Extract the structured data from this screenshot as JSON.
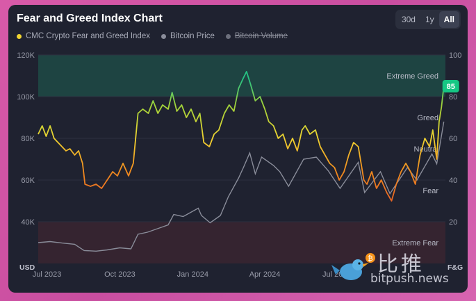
{
  "title": "Fear and Greed Index Chart",
  "ranges": [
    "30d",
    "1y",
    "All"
  ],
  "active_range": "All",
  "legend": [
    {
      "label": "CMC Crypto Fear and Greed Index",
      "color": "#f0d431",
      "enabled": true
    },
    {
      "label": "Bitcoin Price",
      "color": "#8a8d9a",
      "enabled": true
    },
    {
      "label": "Bitcoin Volume",
      "color": "#6c6f7c",
      "enabled": false
    }
  ],
  "watermark": {
    "cn": "比推",
    "en": "bitpush.news"
  },
  "colors": {
    "extreme_greed_band": "#1f4a45",
    "extreme_fear_band": "#3e2530",
    "btc_line": "#8a8d9a",
    "current_badge": "#16c784"
  },
  "chart_data": {
    "type": "line",
    "x_ticks": [
      "Jul 2023",
      "Oct 2023",
      "Jan 2024",
      "Apr 2024",
      "Jul 2024"
    ],
    "x_range": [
      "2023-06-20",
      "2024-11-15"
    ],
    "y_left": {
      "label": "USD",
      "ticks": [
        "40K",
        "60K",
        "80K",
        "100K",
        "120K"
      ],
      "range": [
        20000,
        120000
      ]
    },
    "y_right": {
      "label": "F&G",
      "ticks": [
        "20",
        "40",
        "60",
        "80",
        "100"
      ],
      "range": [
        0,
        100
      ]
    },
    "zones": [
      {
        "label": "Extreme Greed",
        "from": 80,
        "to": 100
      },
      {
        "label": "Greed",
        "at": 70
      },
      {
        "label": "Neutral",
        "at": 55
      },
      {
        "label": "Fear",
        "at": 35
      },
      {
        "label": "Extreme Fear",
        "from": 0,
        "to": 20
      }
    ],
    "current_value": "85",
    "series": [
      {
        "name": "CMC Crypto Fear and Greed Index",
        "axis": "right",
        "values": [
          [
            "2023-06-20",
            62
          ],
          [
            "2023-06-25",
            66
          ],
          [
            "2023-06-30",
            61
          ],
          [
            "2023-07-05",
            66
          ],
          [
            "2023-07-10",
            60
          ],
          [
            "2023-07-15",
            58
          ],
          [
            "2023-07-20",
            56
          ],
          [
            "2023-07-25",
            54
          ],
          [
            "2023-07-30",
            55
          ],
          [
            "2023-08-05",
            52
          ],
          [
            "2023-08-10",
            54
          ],
          [
            "2023-08-15",
            48
          ],
          [
            "2023-08-18",
            38
          ],
          [
            "2023-08-25",
            37
          ],
          [
            "2023-09-01",
            38
          ],
          [
            "2023-09-08",
            36
          ],
          [
            "2023-09-15",
            40
          ],
          [
            "2023-09-22",
            44
          ],
          [
            "2023-09-28",
            42
          ],
          [
            "2023-10-05",
            48
          ],
          [
            "2023-10-12",
            42
          ],
          [
            "2023-10-18",
            48
          ],
          [
            "2023-10-24",
            72
          ],
          [
            "2023-10-30",
            74
          ],
          [
            "2023-11-06",
            72
          ],
          [
            "2023-11-12",
            78
          ],
          [
            "2023-11-18",
            72
          ],
          [
            "2023-11-24",
            76
          ],
          [
            "2023-12-01",
            74
          ],
          [
            "2023-12-06",
            82
          ],
          [
            "2023-12-12",
            73
          ],
          [
            "2023-12-18",
            76
          ],
          [
            "2023-12-24",
            70
          ],
          [
            "2023-12-30",
            74
          ],
          [
            "2024-01-05",
            68
          ],
          [
            "2024-01-10",
            72
          ],
          [
            "2024-01-15",
            58
          ],
          [
            "2024-01-22",
            56
          ],
          [
            "2024-01-28",
            62
          ],
          [
            "2024-02-03",
            64
          ],
          [
            "2024-02-10",
            72
          ],
          [
            "2024-02-16",
            76
          ],
          [
            "2024-02-22",
            73
          ],
          [
            "2024-02-28",
            84
          ],
          [
            "2024-03-05",
            89
          ],
          [
            "2024-03-09",
            92
          ],
          [
            "2024-03-14",
            86
          ],
          [
            "2024-03-20",
            78
          ],
          [
            "2024-03-26",
            80
          ],
          [
            "2024-04-01",
            74
          ],
          [
            "2024-04-06",
            68
          ],
          [
            "2024-04-12",
            66
          ],
          [
            "2024-04-18",
            60
          ],
          [
            "2024-04-24",
            62
          ],
          [
            "2024-04-30",
            55
          ],
          [
            "2024-05-06",
            60
          ],
          [
            "2024-05-12",
            54
          ],
          [
            "2024-05-18",
            64
          ],
          [
            "2024-05-22",
            66
          ],
          [
            "2024-05-28",
            62
          ],
          [
            "2024-06-04",
            64
          ],
          [
            "2024-06-10",
            56
          ],
          [
            "2024-06-16",
            52
          ],
          [
            "2024-06-22",
            48
          ],
          [
            "2024-06-28",
            46
          ],
          [
            "2024-07-04",
            40
          ],
          [
            "2024-07-10",
            44
          ],
          [
            "2024-07-16",
            52
          ],
          [
            "2024-07-22",
            58
          ],
          [
            "2024-07-28",
            56
          ],
          [
            "2024-08-04",
            40
          ],
          [
            "2024-08-08",
            38
          ],
          [
            "2024-08-14",
            44
          ],
          [
            "2024-08-20",
            36
          ],
          [
            "2024-08-26",
            40
          ],
          [
            "2024-09-02",
            34
          ],
          [
            "2024-09-08",
            30
          ],
          [
            "2024-09-14",
            38
          ],
          [
            "2024-09-20",
            44
          ],
          [
            "2024-09-26",
            48
          ],
          [
            "2024-10-02",
            44
          ],
          [
            "2024-10-08",
            38
          ],
          [
            "2024-10-14",
            52
          ],
          [
            "2024-10-20",
            60
          ],
          [
            "2024-10-26",
            56
          ],
          [
            "2024-10-30",
            64
          ],
          [
            "2024-11-04",
            50
          ],
          [
            "2024-11-07",
            68
          ],
          [
            "2024-11-10",
            75
          ],
          [
            "2024-11-13",
            85
          ]
        ]
      },
      {
        "name": "Bitcoin Price",
        "axis": "left",
        "values": [
          [
            "2023-06-20",
            30000
          ],
          [
            "2023-07-05",
            30500
          ],
          [
            "2023-07-20",
            29800
          ],
          [
            "2023-08-05",
            29200
          ],
          [
            "2023-08-17",
            26200
          ],
          [
            "2023-09-01",
            25900
          ],
          [
            "2023-09-15",
            26500
          ],
          [
            "2023-10-01",
            27500
          ],
          [
            "2023-10-15",
            27000
          ],
          [
            "2023-10-24",
            34000
          ],
          [
            "2023-11-05",
            35000
          ],
          [
            "2023-11-20",
            37000
          ],
          [
            "2023-12-01",
            38500
          ],
          [
            "2023-12-08",
            43500
          ],
          [
            "2023-12-20",
            42500
          ],
          [
            "2024-01-08",
            46500
          ],
          [
            "2024-01-12",
            43000
          ],
          [
            "2024-01-23",
            39500
          ],
          [
            "2024-02-05",
            43000
          ],
          [
            "2024-02-15",
            52000
          ],
          [
            "2024-02-28",
            61000
          ],
          [
            "2024-03-05",
            66000
          ],
          [
            "2024-03-13",
            73000
          ],
          [
            "2024-03-20",
            63000
          ],
          [
            "2024-03-28",
            71000
          ],
          [
            "2024-04-12",
            67000
          ],
          [
            "2024-04-20",
            64000
          ],
          [
            "2024-05-01",
            57000
          ],
          [
            "2024-05-20",
            70000
          ],
          [
            "2024-06-05",
            71000
          ],
          [
            "2024-06-20",
            64500
          ],
          [
            "2024-07-05",
            56000
          ],
          [
            "2024-07-28",
            68500
          ],
          [
            "2024-08-05",
            54000
          ],
          [
            "2024-08-25",
            64000
          ],
          [
            "2024-09-06",
            53500
          ],
          [
            "2024-09-28",
            66000
          ],
          [
            "2024-10-10",
            60000
          ],
          [
            "2024-10-29",
            72500
          ],
          [
            "2024-11-04",
            67800
          ],
          [
            "2024-11-13",
            88000
          ]
        ]
      }
    ]
  }
}
